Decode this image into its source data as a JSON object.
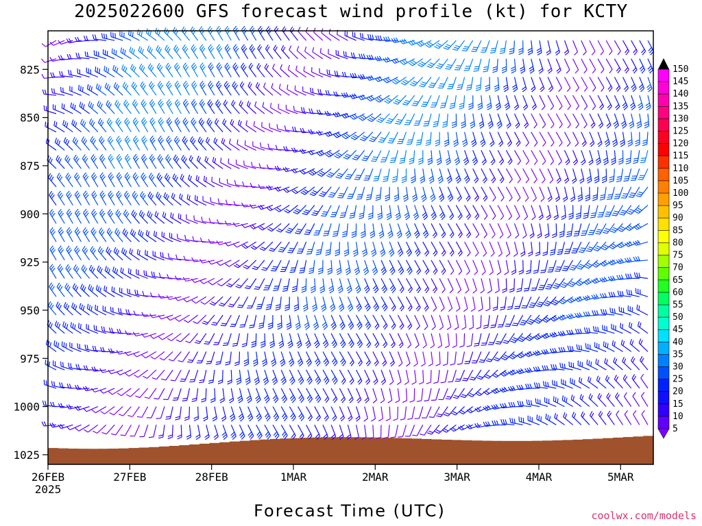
{
  "chart_data": {
    "type": "wind-barb-profile",
    "title": "2025022600 GFS forecast wind profile (kt) for KCTY",
    "xlabel": "Forecast Time (UTC)",
    "ylabel": "",
    "x_tick_labels": [
      "26FEB",
      "27FEB",
      "28FEB",
      "1MAR",
      "2MAR",
      "3MAR",
      "4MAR",
      "5MAR"
    ],
    "x_tick_sublabel": "2025",
    "y_tick_labels": [
      "825",
      "850",
      "875",
      "900",
      "925",
      "950",
      "975",
      "1000",
      "1025"
    ],
    "ylim": [
      1030,
      805
    ],
    "colorbar_labels": [
      "150",
      "145",
      "140",
      "135",
      "130",
      "125",
      "120",
      "115",
      "110",
      "105",
      "100",
      "95",
      "90",
      "85",
      "80",
      "75",
      "70",
      "65",
      "60",
      "55",
      "50",
      "45",
      "40",
      "35",
      "30",
      "25",
      "20",
      "15",
      "10",
      "5"
    ],
    "colorbar_colors": [
      "#ff00ff",
      "#ff00d8",
      "#ff00b0",
      "#ff0080",
      "#ff0050",
      "#ff0020",
      "#ff0000",
      "#ff3000",
      "#ff6000",
      "#ff8000",
      "#ffa000",
      "#ffc000",
      "#ffe000",
      "#ffff00",
      "#e0ff00",
      "#a0ff00",
      "#60ff00",
      "#20ff20",
      "#00ff60",
      "#00ffa0",
      "#00ffd0",
      "#00e0ff",
      "#00b0ff",
      "#0080ff",
      "#0050ff",
      "#0020ff",
      "#1010ff",
      "#3000ff",
      "#6000ff",
      "#8000ff"
    ],
    "surface_color": "#a0522d",
    "background": "#ffffff",
    "wind_kt_range": [
      5,
      40
    ],
    "surface_pressure_hpa_min": 1013,
    "surface_pressure_hpa_max": 1022,
    "grid": false,
    "legend": "colorbar-right"
  },
  "credit": "coolwx.com/models"
}
